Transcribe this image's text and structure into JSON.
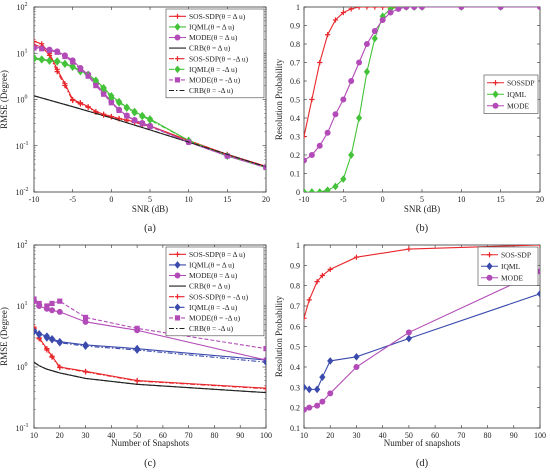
{
  "chart_data": [
    {
      "id": "a",
      "type": "line",
      "panel_label": "(a)",
      "xlabel": "SNR (dB)",
      "ylabel": "RMSE (Degree)",
      "yscale": "log",
      "xlim": [
        -10,
        20
      ],
      "ylim": [
        0.01,
        100
      ],
      "xticks": [
        -10,
        -5,
        0,
        5,
        10,
        15,
        20
      ],
      "ytick_exponents": [
        -2,
        -1,
        0,
        1,
        2
      ],
      "grid": false,
      "legend_position": "top-right",
      "series": [
        {
          "name": "SOS-SDP(θ = Δ u)",
          "color": "#e8262b",
          "dash": "solid",
          "marker": "plus",
          "x": [
            -10,
            -9,
            -8,
            -7,
            -6,
            -5,
            -4,
            -3,
            -2,
            -1,
            0,
            1,
            2,
            3,
            4,
            5,
            10,
            15,
            20
          ],
          "y": [
            18,
            16,
            10,
            4.5,
            2.2,
            1.0,
            0.85,
            0.7,
            0.55,
            0.48,
            0.43,
            0.39,
            0.36,
            0.33,
            0.3,
            0.27,
            0.13,
            0.065,
            0.036
          ]
        },
        {
          "name": "IQML(θ = Δ u)",
          "color": "#44c23a",
          "dash": "solid",
          "marker": "diamond",
          "x": [
            -10,
            -9,
            -8,
            -7,
            -6,
            -5,
            -4,
            -3,
            -2,
            -1,
            0,
            1,
            2,
            3,
            4,
            5,
            10,
            15,
            20
          ],
          "y": [
            8,
            7.5,
            7,
            6.8,
            6,
            5.2,
            4.2,
            3.5,
            2.6,
            1.8,
            1.2,
            0.9,
            0.68,
            0.55,
            0.45,
            0.38,
            0.13,
            0.06,
            0.034
          ]
        },
        {
          "name": "MODE(θ = Δ u)",
          "color": "#b24bb7",
          "dash": "solid",
          "marker": "circle",
          "x": [
            -10,
            -9,
            -8,
            -7,
            -6,
            -5,
            -4,
            -3,
            -2,
            -1,
            0,
            1,
            2,
            3,
            4,
            5,
            10,
            15,
            20
          ],
          "y": [
            14,
            13,
            12,
            11,
            9,
            7,
            4.8,
            3.5,
            2.2,
            1.4,
            0.9,
            0.6,
            0.45,
            0.36,
            0.31,
            0.27,
            0.12,
            0.06,
            0.034
          ]
        },
        {
          "name": "CRB(θ = Δ u)",
          "color": "#222222",
          "dash": "solid",
          "marker": "none",
          "x": [
            -10,
            -5,
            0,
            5,
            10,
            15,
            20
          ],
          "y": [
            1.2,
            0.7,
            0.4,
            0.22,
            0.12,
            0.065,
            0.035
          ]
        },
        {
          "name": "SOS-SDP(θ = -Δ u)",
          "color": "#e8262b",
          "dash": "dashdot",
          "marker": "plus",
          "x": [
            -10,
            -9,
            -8,
            -7,
            -6,
            -5,
            -4,
            -3,
            -2,
            -1,
            0,
            1,
            2,
            3,
            4,
            5,
            10,
            15,
            20
          ],
          "y": [
            15,
            14,
            9,
            4.0,
            2.0,
            0.95,
            0.8,
            0.68,
            0.53,
            0.46,
            0.42,
            0.38,
            0.35,
            0.32,
            0.29,
            0.26,
            0.13,
            0.064,
            0.036
          ]
        },
        {
          "name": "IQML(θ = -Δ u)",
          "color": "#44c23a",
          "dash": "dashdot",
          "marker": "diamond",
          "x": [
            -10,
            -9,
            -8,
            -7,
            -6,
            -5,
            -4,
            -3,
            -2,
            -1,
            0,
            1,
            2,
            3,
            4,
            5,
            10,
            15,
            20
          ],
          "y": [
            7.5,
            7.2,
            6.8,
            6.5,
            5.8,
            5.0,
            4.0,
            3.3,
            2.5,
            1.7,
            1.1,
            0.85,
            0.65,
            0.52,
            0.43,
            0.36,
            0.13,
            0.06,
            0.034
          ]
        },
        {
          "name": "MODE(θ = -Δ u)",
          "color": "#b24bb7",
          "dash": "dashed",
          "marker": "square",
          "x": [
            -10,
            -9,
            -8,
            -7,
            -6,
            -5,
            -4,
            -3,
            -2,
            -1,
            0,
            1,
            2,
            3,
            4,
            5,
            10,
            15,
            20
          ],
          "y": [
            13,
            12.5,
            11.5,
            10.5,
            8.5,
            6.5,
            4.5,
            3.2,
            2.0,
            1.3,
            0.85,
            0.58,
            0.44,
            0.35,
            0.3,
            0.26,
            0.12,
            0.06,
            0.034
          ]
        },
        {
          "name": "CRB(θ = -Δ u)",
          "color": "#222222",
          "dash": "dashdot",
          "marker": "none",
          "x": [
            -10,
            -5,
            0,
            5,
            10,
            15,
            20
          ],
          "y": [
            1.2,
            0.7,
            0.4,
            0.22,
            0.12,
            0.065,
            0.035
          ]
        }
      ]
    },
    {
      "id": "b",
      "type": "line",
      "panel_label": "(b)",
      "xlabel": "SNR (dB)",
      "ylabel": "Resolution Probability",
      "yscale": "linear",
      "xlim": [
        -10,
        20
      ],
      "ylim": [
        0,
        1
      ],
      "xticks": [
        -10,
        -5,
        0,
        5,
        10,
        15,
        20
      ],
      "yticks": [
        0,
        0.1,
        0.2,
        0.3,
        0.4,
        0.5,
        0.6,
        0.7,
        0.8,
        0.9,
        1
      ],
      "grid": false,
      "legend_position": "right",
      "series": [
        {
          "name": "SOSSDP",
          "color": "#e8262b",
          "dash": "solid",
          "marker": "plus",
          "x": [
            -10,
            -9,
            -8,
            -7,
            -6,
            -5,
            -4,
            -3,
            -2,
            -1,
            0,
            1,
            2,
            3,
            4,
            5,
            10,
            15,
            20
          ],
          "y": [
            0.3,
            0.5,
            0.7,
            0.85,
            0.93,
            0.97,
            0.99,
            1,
            1,
            1,
            1,
            1,
            1,
            1,
            1,
            1,
            1,
            1,
            1
          ]
        },
        {
          "name": "IQML",
          "color": "#44c23a",
          "dash": "solid",
          "marker": "diamond",
          "x": [
            -10,
            -9,
            -8,
            -7,
            -6,
            -5,
            -4,
            -3,
            -2,
            -1,
            0,
            1,
            2,
            3,
            4,
            5,
            10,
            15,
            20
          ],
          "y": [
            0,
            0,
            0,
            0.01,
            0.03,
            0.07,
            0.2,
            0.4,
            0.65,
            0.83,
            0.95,
            0.99,
            1,
            1,
            1,
            1,
            1,
            1,
            1
          ]
        },
        {
          "name": "MODE",
          "color": "#b24bb7",
          "dash": "solid",
          "marker": "circle",
          "x": [
            -10,
            -9,
            -8,
            -7,
            -6,
            -5,
            -4,
            -3,
            -2,
            -1,
            0,
            1,
            2,
            3,
            4,
            5,
            10,
            15,
            20
          ],
          "y": [
            0.17,
            0.2,
            0.25,
            0.32,
            0.42,
            0.5,
            0.6,
            0.7,
            0.8,
            0.87,
            0.93,
            0.97,
            0.99,
            1,
            1,
            1,
            1,
            1,
            1
          ]
        }
      ]
    },
    {
      "id": "c",
      "type": "line",
      "panel_label": "(c)",
      "xlabel": "Number of Snapshots",
      "ylabel": "RMSE (Degree)",
      "yscale": "log",
      "xlim": [
        10,
        100
      ],
      "ylim": [
        0.1,
        100
      ],
      "xticks": [
        10,
        20,
        30,
        40,
        50,
        60,
        70,
        80,
        90,
        100
      ],
      "ytick_exponents": [
        -1,
        0,
        1,
        2
      ],
      "grid": false,
      "legend_position": "top-right",
      "series": [
        {
          "name": "SOS-SDP(θ = Δ u)",
          "color": "#e8262b",
          "dash": "solid",
          "marker": "plus",
          "x": [
            10,
            12,
            15,
            17,
            20,
            30,
            50,
            100
          ],
          "y": [
            4.5,
            3.0,
            2.0,
            1.5,
            1.0,
            0.85,
            0.6,
            0.45
          ]
        },
        {
          "name": "IQML(θ = Δ u)",
          "color": "#3b4aad",
          "dash": "solid",
          "marker": "diamond",
          "x": [
            10,
            12,
            15,
            17,
            20,
            30,
            50,
            100
          ],
          "y": [
            4.0,
            3.5,
            3.2,
            2.9,
            2.6,
            2.3,
            2.0,
            1.3
          ]
        },
        {
          "name": "MODE(θ = Δ u)",
          "color": "#b24bb7",
          "dash": "solid",
          "marker": "circle",
          "x": [
            10,
            12,
            15,
            17,
            20,
            30,
            50,
            100
          ],
          "y": [
            12,
            10,
            9,
            8.5,
            8.0,
            5.5,
            4.0,
            1.3
          ]
        },
        {
          "name": "CRB(θ = Δ u)",
          "color": "#222222",
          "dash": "solid",
          "marker": "none",
          "x": [
            10,
            12,
            15,
            17,
            20,
            30,
            50,
            100
          ],
          "y": [
            1.2,
            1.05,
            0.92,
            0.87,
            0.8,
            0.65,
            0.52,
            0.38
          ]
        },
        {
          "name": "SOS-SDP(θ = -Δ u)",
          "color": "#e8262b",
          "dash": "dashdot",
          "marker": "plus",
          "x": [
            10,
            12,
            15,
            17,
            20,
            30,
            50,
            100
          ],
          "y": [
            4.3,
            2.9,
            1.9,
            1.45,
            0.98,
            0.83,
            0.59,
            0.44
          ]
        },
        {
          "name": "IQML(θ = -Δ u)",
          "color": "#3b4aad",
          "dash": "dashdot",
          "marker": "diamond",
          "x": [
            10,
            12,
            15,
            17,
            20,
            30,
            50,
            100
          ],
          "y": [
            3.8,
            3.4,
            3.0,
            2.8,
            2.5,
            2.2,
            1.9,
            1.2
          ]
        },
        {
          "name": "MODE(θ = -Δ u)",
          "color": "#b24bb7",
          "dash": "dashed",
          "marker": "square",
          "x": [
            10,
            12,
            15,
            17,
            20,
            30,
            50,
            100
          ],
          "y": [
            13,
            11,
            10,
            11,
            12,
            6.5,
            4.3,
            2.0
          ]
        },
        {
          "name": "CRB(θ = -Δ u)",
          "color": "#222222",
          "dash": "dashdot",
          "marker": "none",
          "x": [
            10,
            12,
            15,
            17,
            20,
            30,
            50,
            100
          ],
          "y": [
            1.2,
            1.05,
            0.92,
            0.87,
            0.8,
            0.65,
            0.52,
            0.38
          ]
        }
      ]
    },
    {
      "id": "d",
      "type": "line",
      "panel_label": "(d)",
      "xlabel": "Number of snapshots",
      "ylabel": "Resolution Probability",
      "yscale": "linear",
      "xlim": [
        10,
        100
      ],
      "ylim": [
        0.1,
        1
      ],
      "xticks": [
        10,
        20,
        30,
        40,
        50,
        60,
        70,
        80,
        90,
        100
      ],
      "yticks": [
        0.1,
        0.2,
        0.3,
        0.4,
        0.5,
        0.6,
        0.7,
        0.8,
        0.9,
        1
      ],
      "grid": false,
      "legend_position": "top-right",
      "series": [
        {
          "name": "SOS-SDP",
          "color": "#e8262b",
          "dash": "solid",
          "marker": "plus",
          "x": [
            10,
            12,
            15,
            17,
            20,
            30,
            50,
            100
          ],
          "y": [
            0.64,
            0.73,
            0.82,
            0.85,
            0.88,
            0.94,
            0.98,
            1.0
          ]
        },
        {
          "name": "IQML",
          "color": "#3b4aad",
          "dash": "solid",
          "marker": "diamond",
          "x": [
            10,
            12,
            15,
            17,
            20,
            30,
            50,
            100
          ],
          "y": [
            0.3,
            0.29,
            0.29,
            0.35,
            0.43,
            0.45,
            0.54,
            0.76
          ]
        },
        {
          "name": "MODE",
          "color": "#b24bb7",
          "dash": "solid",
          "marker": "circle",
          "x": [
            10,
            12,
            15,
            17,
            20,
            30,
            50,
            100
          ],
          "y": [
            0.19,
            0.2,
            0.21,
            0.23,
            0.27,
            0.4,
            0.57,
            0.87
          ]
        }
      ]
    }
  ]
}
